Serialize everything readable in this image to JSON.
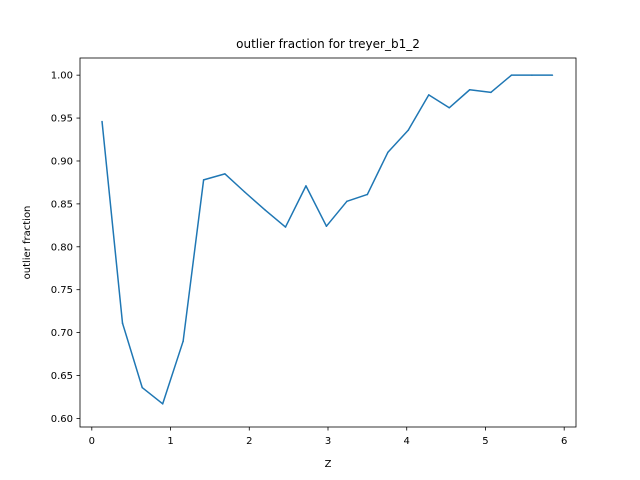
{
  "chart_data": {
    "type": "line",
    "title": "outlier fraction for treyer_b1_2",
    "xlabel": "Z",
    "ylabel": "outlier fraction",
    "xlim": [
      -0.15,
      6.15
    ],
    "ylim": [
      0.59,
      1.02
    ],
    "grid": false,
    "x_ticks": [
      "0",
      "1",
      "2",
      "3",
      "4",
      "5",
      "6"
    ],
    "y_ticks": [
      "0.60",
      "0.65",
      "0.70",
      "0.75",
      "0.80",
      "0.85",
      "0.90",
      "0.95",
      "1.00"
    ],
    "series": [
      {
        "color": "#1f77b4",
        "x": [
          0.13,
          0.39,
          0.64,
          0.9,
          1.16,
          1.42,
          1.69,
          1.94,
          2.2,
          2.46,
          2.72,
          2.98,
          3.24,
          3.5,
          3.76,
          4.02,
          4.28,
          4.54,
          4.8,
          5.07,
          5.33,
          5.59,
          5.85
        ],
        "values": [
          0.946,
          0.711,
          0.636,
          0.617,
          0.69,
          0.878,
          0.885,
          0.864,
          0.843,
          0.823,
          0.871,
          0.824,
          0.853,
          0.861,
          0.91,
          0.936,
          0.977,
          0.962,
          0.983,
          0.98,
          1.0,
          1.0,
          1.0
        ]
      }
    ]
  }
}
